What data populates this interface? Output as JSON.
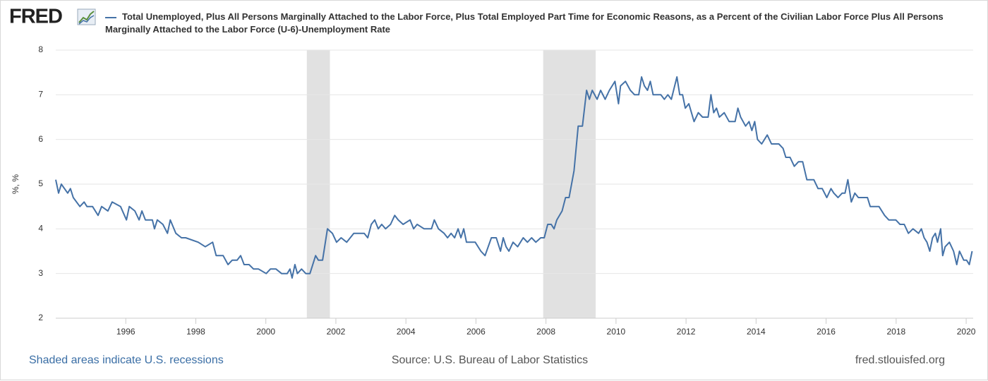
{
  "logo": "FRED",
  "chart_data": {
    "type": "line",
    "y_label": "%, %",
    "x": [
      1994.0,
      1994.08,
      1994.16,
      1994.34,
      1994.42,
      1994.5,
      1994.69,
      1994.81,
      1994.89,
      1995.05,
      1995.21,
      1995.31,
      1995.49,
      1995.61,
      1995.85,
      1996.02,
      1996.1,
      1996.26,
      1996.38,
      1996.46,
      1996.56,
      1996.76,
      1996.82,
      1996.9,
      1997.06,
      1997.19,
      1997.27,
      1997.43,
      1997.59,
      1997.71,
      1998.07,
      1998.27,
      1998.48,
      1998.58,
      1998.78,
      1998.92,
      1999.04,
      1999.18,
      1999.28,
      1999.38,
      1999.52,
      1999.65,
      1999.79,
      2000.01,
      2000.13,
      2000.29,
      2000.45,
      2000.61,
      2000.69,
      2000.75,
      2000.83,
      2000.9,
      2001.02,
      2001.14,
      2001.26,
      2001.42,
      2001.5,
      2001.62,
      2001.76,
      2001.9,
      2002.02,
      2002.15,
      2002.31,
      2002.51,
      2002.81,
      2002.91,
      2003.01,
      2003.11,
      2003.21,
      2003.31,
      2003.42,
      2003.56,
      2003.68,
      2003.78,
      2003.92,
      2004.12,
      2004.22,
      2004.32,
      2004.52,
      2004.73,
      2004.81,
      2004.93,
      2005.09,
      2005.19,
      2005.29,
      2005.39,
      2005.49,
      2005.57,
      2005.65,
      2005.73,
      2005.98,
      2006.14,
      2006.26,
      2006.44,
      2006.58,
      2006.7,
      2006.78,
      2006.86,
      2006.94,
      2007.06,
      2007.19,
      2007.35,
      2007.47,
      2007.59,
      2007.71,
      2007.85,
      2007.95,
      2008.05,
      2008.15,
      2008.23,
      2008.31,
      2008.46,
      2008.56,
      2008.66,
      2008.8,
      2008.92,
      2009.04,
      2009.16,
      2009.24,
      2009.32,
      2009.46,
      2009.56,
      2009.69,
      2009.81,
      2009.97,
      2010.07,
      2010.13,
      2010.27,
      2010.41,
      2010.53,
      2010.65,
      2010.73,
      2010.81,
      2010.9,
      2010.98,
      2011.06,
      2011.28,
      2011.38,
      2011.48,
      2011.58,
      2011.74,
      2011.82,
      2011.9,
      2011.98,
      2012.08,
      2012.23,
      2012.35,
      2012.47,
      2012.63,
      2012.71,
      2012.79,
      2012.87,
      2012.95,
      2013.09,
      2013.23,
      2013.4,
      2013.48,
      2013.56,
      2013.7,
      2013.8,
      2013.88,
      2013.96,
      2014.04,
      2014.16,
      2014.32,
      2014.44,
      2014.65,
      2014.77,
      2014.85,
      2014.97,
      2015.09,
      2015.21,
      2015.33,
      2015.45,
      2015.65,
      2015.77,
      2015.89,
      2016.02,
      2016.14,
      2016.22,
      2016.34,
      2016.46,
      2016.54,
      2016.62,
      2016.72,
      2016.82,
      2016.92,
      2017.18,
      2017.26,
      2017.51,
      2017.67,
      2017.79,
      2017.99,
      2018.11,
      2018.23,
      2018.35,
      2018.48,
      2018.64,
      2018.72,
      2018.8,
      2018.88,
      2018.96,
      2019.04,
      2019.12,
      2019.18,
      2019.27,
      2019.33,
      2019.4,
      2019.52,
      2019.64,
      2019.73,
      2019.81,
      2019.93,
      2020.01,
      2020.09,
      2020.17
    ],
    "series": [
      {
        "name": "Total Unemployed, Plus All Persons Marginally Attached to the Labor Force, Plus Total Employed Part Time for Economic Reasons, as a Percent of the Civilian Labor Force Plus All Persons Marginally Attached to the Labor Force (U-6)-Unemployment Rate",
        "color": "#4572a7",
        "values": [
          5.1,
          4.8,
          5.0,
          4.8,
          4.9,
          4.7,
          4.5,
          4.6,
          4.5,
          4.5,
          4.3,
          4.5,
          4.4,
          4.6,
          4.5,
          4.2,
          4.5,
          4.4,
          4.2,
          4.4,
          4.2,
          4.2,
          4.0,
          4.2,
          4.1,
          3.9,
          4.2,
          3.9,
          3.8,
          3.8,
          3.7,
          3.6,
          3.7,
          3.4,
          3.4,
          3.2,
          3.3,
          3.3,
          3.4,
          3.2,
          3.2,
          3.1,
          3.1,
          3.0,
          3.1,
          3.1,
          3.0,
          3.0,
          3.1,
          2.9,
          3.2,
          3.0,
          3.1,
          3.0,
          3.0,
          3.4,
          3.3,
          3.3,
          4.0,
          3.9,
          3.7,
          3.8,
          3.7,
          3.9,
          3.9,
          3.8,
          4.1,
          4.2,
          4.0,
          4.1,
          4.0,
          4.1,
          4.3,
          4.2,
          4.1,
          4.2,
          4.0,
          4.1,
          4.0,
          4.0,
          4.2,
          4.0,
          3.9,
          3.8,
          3.9,
          3.8,
          4.0,
          3.8,
          4.0,
          3.7,
          3.7,
          3.5,
          3.4,
          3.8,
          3.8,
          3.5,
          3.8,
          3.6,
          3.5,
          3.7,
          3.6,
          3.8,
          3.7,
          3.8,
          3.7,
          3.8,
          3.8,
          4.1,
          4.1,
          4.0,
          4.2,
          4.4,
          4.7,
          4.7,
          5.3,
          6.3,
          6.3,
          7.1,
          6.9,
          7.1,
          6.9,
          7.1,
          6.9,
          7.1,
          7.3,
          6.8,
          7.2,
          7.3,
          7.1,
          7.0,
          7.0,
          7.4,
          7.2,
          7.1,
          7.3,
          7.0,
          7.0,
          6.9,
          7.0,
          6.9,
          7.4,
          7.0,
          7.0,
          6.7,
          6.8,
          6.4,
          6.6,
          6.5,
          6.5,
          7.0,
          6.6,
          6.7,
          6.5,
          6.6,
          6.4,
          6.4,
          6.7,
          6.5,
          6.3,
          6.4,
          6.2,
          6.4,
          6.0,
          5.9,
          6.1,
          5.9,
          5.9,
          5.8,
          5.6,
          5.6,
          5.4,
          5.5,
          5.5,
          5.1,
          5.1,
          4.9,
          4.9,
          4.7,
          4.9,
          4.8,
          4.7,
          4.8,
          4.8,
          5.1,
          4.6,
          4.8,
          4.7,
          4.7,
          4.5,
          4.5,
          4.3,
          4.2,
          4.2,
          4.1,
          4.1,
          3.9,
          4.0,
          3.9,
          4.0,
          3.8,
          3.7,
          3.5,
          3.8,
          3.9,
          3.7,
          4.0,
          3.4,
          3.6,
          3.7,
          3.5,
          3.2,
          3.5,
          3.3,
          3.3,
          3.2,
          3.5
        ]
      }
    ],
    "recessions": [
      [
        2001.17,
        2001.83
      ],
      [
        2007.92,
        2009.42
      ]
    ],
    "xlim": [
      1994,
      2020.2
    ],
    "xticks": [
      1996,
      1998,
      2000,
      2002,
      2004,
      2006,
      2008,
      2010,
      2012,
      2014,
      2016,
      2018,
      2020
    ],
    "ylim": [
      2,
      8
    ],
    "yticks": [
      2,
      3,
      4,
      5,
      6,
      7,
      8
    ],
    "grid": true,
    "note": "Shaded areas indicate U.S. recessions",
    "source": "Source: U.S. Bureau of Labor Statistics",
    "site": "fred.stlouisfed.org"
  }
}
